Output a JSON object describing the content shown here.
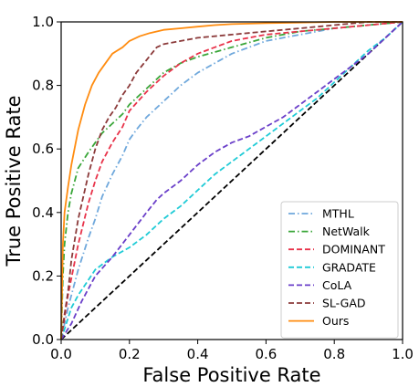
{
  "chart_data": {
    "type": "line",
    "xlabel": "False Positive Rate",
    "ylabel": "True Positive Rate",
    "xlim": [
      0.0,
      1.0
    ],
    "ylim": [
      0.0,
      1.0
    ],
    "xticks": [
      "0.0",
      "0.2",
      "0.4",
      "0.6",
      "0.8",
      "1.0"
    ],
    "yticks": [
      "0.0",
      "0.2",
      "0.4",
      "0.6",
      "0.8",
      "1.0"
    ],
    "grid": false,
    "legend_position": "lower-right",
    "diagonal": {
      "x": [
        0,
        1
      ],
      "y": [
        0,
        1
      ],
      "color": "#000000",
      "style": "dashed"
    },
    "series": [
      {
        "name": "MTHL",
        "color": "#6fa8dc",
        "style": "dashdot",
        "x": [
          0,
          0.02,
          0.05,
          0.08,
          0.1,
          0.12,
          0.15,
          0.18,
          0.2,
          0.22,
          0.25,
          0.28,
          0.3,
          0.35,
          0.4,
          0.45,
          0.5,
          0.55,
          0.6,
          0.65,
          0.7,
          0.8,
          0.9,
          1.0
        ],
        "y": [
          0,
          0.1,
          0.22,
          0.32,
          0.38,
          0.45,
          0.52,
          0.58,
          0.63,
          0.66,
          0.7,
          0.73,
          0.75,
          0.8,
          0.84,
          0.87,
          0.9,
          0.92,
          0.94,
          0.95,
          0.96,
          0.98,
          0.99,
          1.0
        ]
      },
      {
        "name": "NetWalk",
        "color": "#3aa639",
        "style": "dashdot",
        "x": [
          0,
          0.005,
          0.01,
          0.02,
          0.03,
          0.05,
          0.08,
          0.1,
          0.12,
          0.15,
          0.18,
          0.2,
          0.25,
          0.3,
          0.35,
          0.4,
          0.5,
          0.6,
          0.7,
          0.8,
          0.9,
          1.0
        ],
        "y": [
          0,
          0.2,
          0.3,
          0.4,
          0.46,
          0.54,
          0.59,
          0.62,
          0.65,
          0.68,
          0.71,
          0.74,
          0.79,
          0.84,
          0.87,
          0.89,
          0.92,
          0.95,
          0.97,
          0.98,
          0.99,
          1.0
        ]
      },
      {
        "name": "DOMINANT",
        "color": "#e8334a",
        "style": "dashed",
        "x": [
          0,
          0.02,
          0.05,
          0.08,
          0.1,
          0.12,
          0.15,
          0.18,
          0.2,
          0.25,
          0.3,
          0.35,
          0.4,
          0.45,
          0.5,
          0.6,
          0.7,
          0.8,
          0.9,
          1.0
        ],
        "y": [
          0,
          0.14,
          0.3,
          0.43,
          0.5,
          0.56,
          0.62,
          0.67,
          0.72,
          0.78,
          0.83,
          0.87,
          0.9,
          0.92,
          0.94,
          0.96,
          0.97,
          0.98,
          0.99,
          1.0
        ]
      },
      {
        "name": "GRADATE",
        "color": "#1fcbd6",
        "style": "dashed",
        "x": [
          0,
          0.03,
          0.05,
          0.1,
          0.15,
          0.2,
          0.25,
          0.3,
          0.35,
          0.4,
          0.45,
          0.5,
          0.55,
          0.6,
          0.65,
          0.7,
          0.75,
          0.8,
          0.85,
          0.9,
          0.95,
          1.0
        ],
        "y": [
          0,
          0.1,
          0.14,
          0.22,
          0.26,
          0.29,
          0.33,
          0.38,
          0.42,
          0.47,
          0.52,
          0.56,
          0.6,
          0.64,
          0.68,
          0.72,
          0.76,
          0.81,
          0.86,
          0.91,
          0.95,
          1.0
        ]
      },
      {
        "name": "CoLA",
        "color": "#6a3fc9",
        "style": "dashed",
        "x": [
          0,
          0.03,
          0.06,
          0.1,
          0.15,
          0.2,
          0.25,
          0.28,
          0.3,
          0.35,
          0.4,
          0.45,
          0.5,
          0.55,
          0.6,
          0.65,
          0.7,
          0.75,
          0.8,
          0.85,
          0.9,
          0.95,
          1.0
        ],
        "y": [
          0,
          0.05,
          0.12,
          0.2,
          0.26,
          0.33,
          0.4,
          0.44,
          0.46,
          0.5,
          0.55,
          0.59,
          0.62,
          0.64,
          0.67,
          0.7,
          0.74,
          0.78,
          0.82,
          0.86,
          0.9,
          0.95,
          1.0
        ]
      },
      {
        "name": "SL-GAD",
        "color": "#8b3a3a",
        "style": "dashed",
        "x": [
          0,
          0.01,
          0.02,
          0.03,
          0.05,
          0.08,
          0.1,
          0.12,
          0.14,
          0.16,
          0.18,
          0.2,
          0.22,
          0.25,
          0.28,
          0.3,
          0.35,
          0.4,
          0.5,
          0.6,
          0.7,
          0.8,
          0.9,
          1.0
        ],
        "y": [
          0,
          0.08,
          0.15,
          0.25,
          0.38,
          0.52,
          0.6,
          0.66,
          0.7,
          0.73,
          0.77,
          0.8,
          0.84,
          0.88,
          0.92,
          0.93,
          0.94,
          0.95,
          0.96,
          0.97,
          0.98,
          0.99,
          1.0,
          1.0
        ]
      },
      {
        "name": "Ours",
        "color": "#ff8c10",
        "style": "solid",
        "x": [
          0,
          0.005,
          0.01,
          0.02,
          0.03,
          0.05,
          0.07,
          0.09,
          0.11,
          0.13,
          0.15,
          0.18,
          0.2,
          0.23,
          0.26,
          0.3,
          0.35,
          0.4,
          0.45,
          0.5,
          0.6,
          0.7,
          0.8,
          0.9,
          1.0
        ],
        "y": [
          0,
          0.3,
          0.4,
          0.48,
          0.55,
          0.66,
          0.74,
          0.8,
          0.84,
          0.87,
          0.9,
          0.92,
          0.94,
          0.955,
          0.965,
          0.975,
          0.98,
          0.985,
          0.99,
          0.993,
          0.996,
          0.998,
          1.0,
          1.0,
          1.0
        ]
      }
    ]
  }
}
